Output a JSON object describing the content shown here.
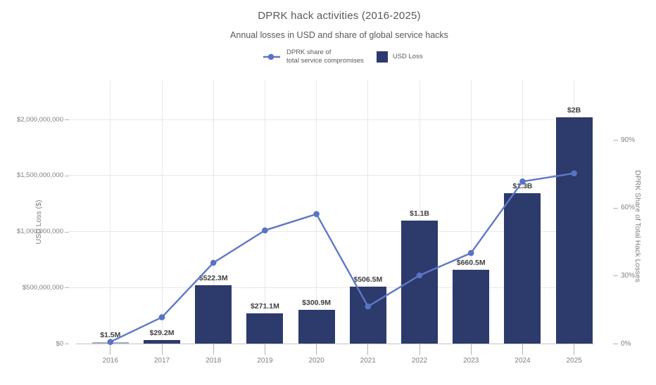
{
  "header": {
    "title": "DPRK hack activities (2016-2025)",
    "subtitle": "Annual losses in USD and share of global service hacks"
  },
  "legend": {
    "share_line": {
      "label_line1": "DPRK share of",
      "label_line2": "total service compromises"
    },
    "usd_loss": {
      "label": "USD Loss"
    }
  },
  "chart_data": {
    "type": "bar",
    "title": "DPRK hack activities (2016-2025)",
    "subtitle": "Annual losses in USD and share of global service hacks",
    "categories": [
      "2016",
      "2017",
      "2018",
      "2019",
      "2020",
      "2021",
      "2022",
      "2023",
      "2024",
      "2025"
    ],
    "series": [
      {
        "name": "USD Loss",
        "type": "bar",
        "axis": "left",
        "unit": "USD millions",
        "values": [
          1.5,
          29.2,
          522.3,
          271.1,
          300.9,
          506.5,
          1100,
          660.5,
          1340,
          2020
        ],
        "labels": [
          "$1.5M",
          "$29.2M",
          "$522.3M",
          "$271.1M",
          "$300.9M",
          "$506.5M",
          "$1.1B",
          "$660.5M",
          "$1.3B",
          "$2B"
        ],
        "color": "#2c3a6c"
      },
      {
        "name": "DPRK share of total service compromises",
        "type": "line",
        "axis": "right",
        "unit": "percent",
        "values": [
          0.7,
          11.6,
          35.7,
          50,
          57.2,
          16.4,
          30.1,
          40,
          71.6,
          75.2
        ],
        "color": "#5f78c7"
      }
    ],
    "left_axis": {
      "title": "USD Loss ($)",
      "tick_labels": [
        "$0",
        "$500,000,000",
        "$1,000,000,000",
        "$1,500,000,000",
        "$2,000,000,000"
      ],
      "tick_values_millions": [
        0,
        500,
        1000,
        1500,
        2000
      ],
      "range_millions": [
        0,
        2005
      ]
    },
    "right_axis": {
      "title": "DPRK Share of Total Hack Losses",
      "tick_labels": [
        "0%",
        "30%",
        "60%",
        "90%"
      ],
      "tick_values_percent": [
        0,
        30,
        60,
        90
      ],
      "range_percent": [
        0,
        99
      ]
    },
    "x_axis": {
      "tick_labels": [
        "2016",
        "2017",
        "2018",
        "2019",
        "2020",
        "2021",
        "2022",
        "2023",
        "2024",
        "2025"
      ]
    },
    "grid": true,
    "legend_position": "top",
    "colors": {
      "bar": "#2c3a6c",
      "thin_bar": "#a3aed2",
      "line": "#5f78c7",
      "marker": "#5873c4",
      "grid": "#e8e8e8",
      "axis_line": "#c4c4c4",
      "tick_text": "#7f7f7f",
      "bar_label_text": "#3f3f3f",
      "title_text": "#595959"
    }
  }
}
